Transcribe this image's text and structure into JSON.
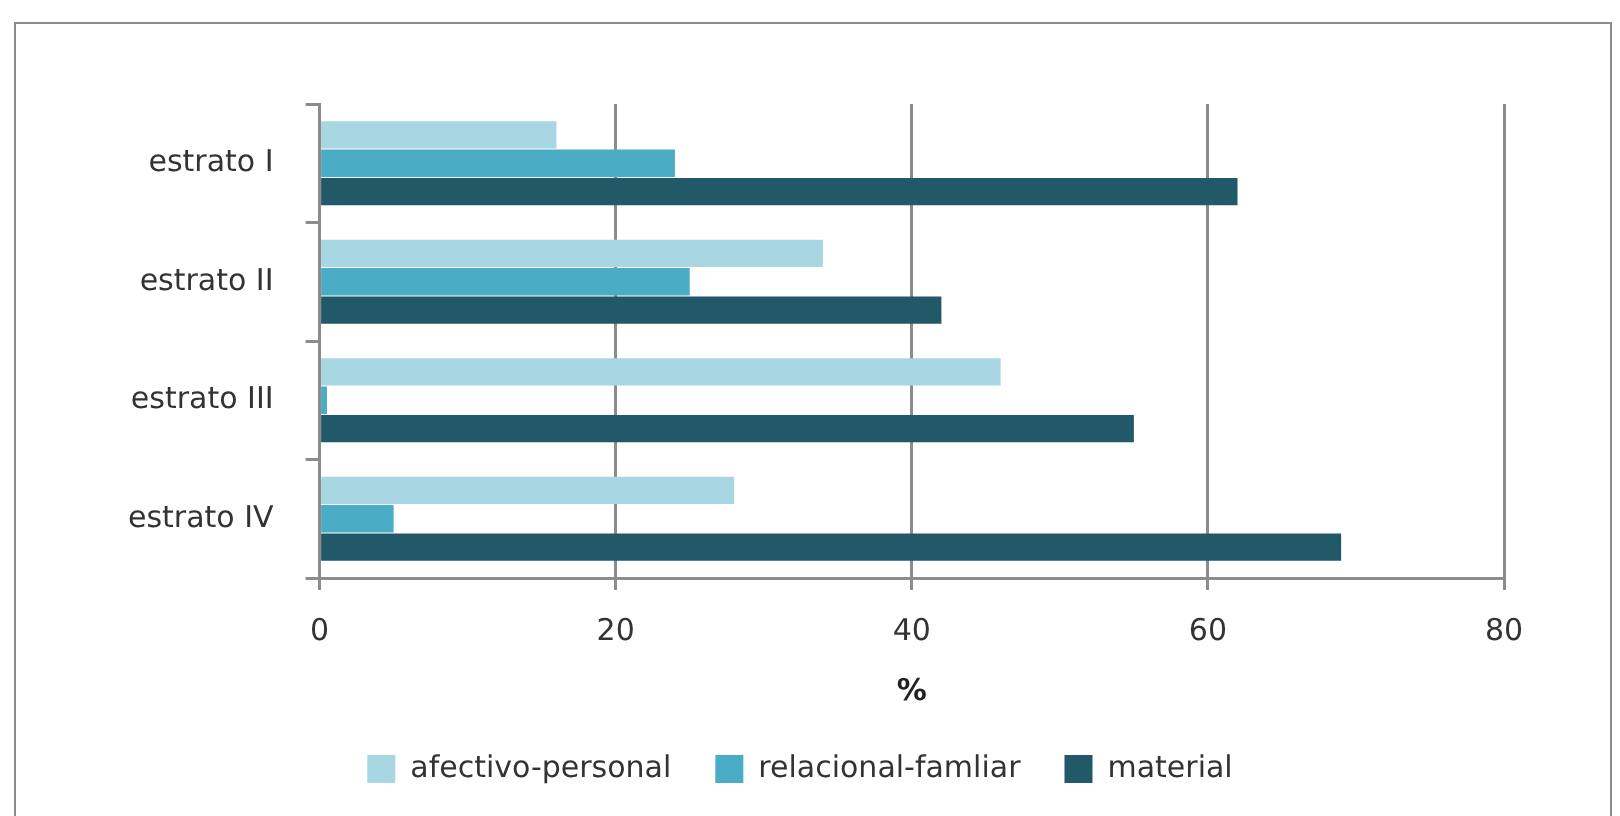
{
  "chart_data": {
    "type": "bar",
    "orientation": "horizontal",
    "xlabel": "%",
    "categories": [
      "estrato I",
      "estrato II",
      "estrato III",
      "estrato IV"
    ],
    "series": [
      {
        "name": "afectivo-personal",
        "color": "#a9d6e3",
        "values": [
          16,
          34,
          46,
          28
        ]
      },
      {
        "name": "relacional-famliar",
        "color": "#4bacc6",
        "values": [
          24,
          25,
          0.5,
          5
        ]
      },
      {
        "name": "material",
        "color": "#215968",
        "values": [
          62,
          42,
          55,
          69
        ]
      }
    ],
    "xlim": [
      0,
      80
    ],
    "xticks": [
      0,
      20,
      40,
      60,
      80
    ],
    "grid": "x",
    "legend": "bottom"
  }
}
